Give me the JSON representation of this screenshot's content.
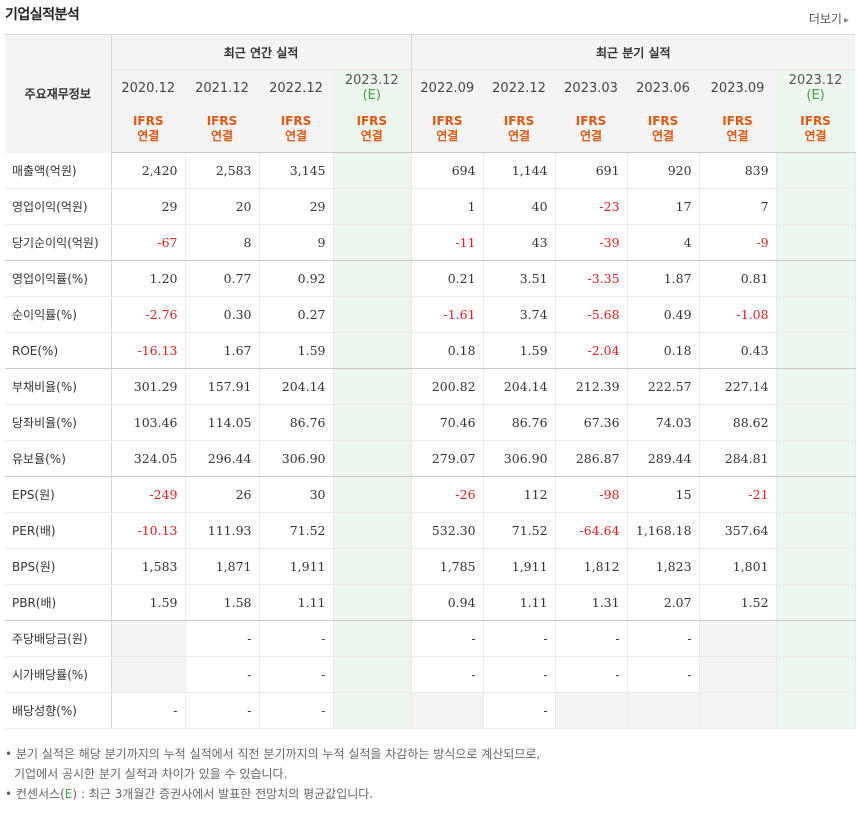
{
  "title": "기업실적분석",
  "more": "더보기",
  "header": {
    "label": "주요재무정보",
    "annual": "최근 연간 실적",
    "quarterly": "최근 분기 실적",
    "ifrs": "IFRS",
    "consolidated": "연결",
    "annual_periods": [
      "2020.12",
      "2021.12",
      "2022.12",
      "2023.12"
    ],
    "quarter_periods": [
      "2022.09",
      "2022.12",
      "2023.03",
      "2023.06",
      "2023.09",
      "2023.12"
    ],
    "estimate_mark": "(E)"
  },
  "rows": [
    {
      "label": "매출액(억원)",
      "a": [
        "2,420",
        "2,583",
        "3,145",
        ""
      ],
      "q": [
        "694",
        "1,144",
        "691",
        "920",
        "839",
        ""
      ]
    },
    {
      "label": "영업이익(억원)",
      "a": [
        "29",
        "20",
        "29",
        ""
      ],
      "q": [
        "1",
        "40",
        "-23",
        "17",
        "7",
        ""
      ]
    },
    {
      "label": "당기순이익(억원)",
      "a": [
        "-67",
        "8",
        "9",
        ""
      ],
      "q": [
        "-11",
        "43",
        "-39",
        "4",
        "-9",
        ""
      ]
    },
    {
      "label": "영업이익률(%)",
      "a": [
        "1.20",
        "0.77",
        "0.92",
        ""
      ],
      "q": [
        "0.21",
        "3.51",
        "-3.35",
        "1.87",
        "0.81",
        ""
      ]
    },
    {
      "label": "순이익률(%)",
      "a": [
        "-2.76",
        "0.30",
        "0.27",
        ""
      ],
      "q": [
        "-1.61",
        "3.74",
        "-5.68",
        "0.49",
        "-1.08",
        ""
      ]
    },
    {
      "label": "ROE(%)",
      "a": [
        "-16.13",
        "1.67",
        "1.59",
        ""
      ],
      "q": [
        "0.18",
        "1.59",
        "-2.04",
        "0.18",
        "0.43",
        ""
      ]
    },
    {
      "label": "부채비율(%)",
      "a": [
        "301.29",
        "157.91",
        "204.14",
        ""
      ],
      "q": [
        "200.82",
        "204.14",
        "212.39",
        "222.57",
        "227.14",
        ""
      ]
    },
    {
      "label": "당좌비율(%)",
      "a": [
        "103.46",
        "114.05",
        "86.76",
        ""
      ],
      "q": [
        "70.46",
        "86.76",
        "67.36",
        "74.03",
        "88.62",
        ""
      ]
    },
    {
      "label": "유보율(%)",
      "a": [
        "324.05",
        "296.44",
        "306.90",
        ""
      ],
      "q": [
        "279.07",
        "306.90",
        "286.87",
        "289.44",
        "284.81",
        ""
      ]
    },
    {
      "label": "EPS(원)",
      "a": [
        "-249",
        "26",
        "30",
        ""
      ],
      "q": [
        "-26",
        "112",
        "-98",
        "15",
        "-21",
        ""
      ]
    },
    {
      "label": "PER(배)",
      "a": [
        "-10.13",
        "111.93",
        "71.52",
        ""
      ],
      "q": [
        "532.30",
        "71.52",
        "-64.64",
        "1,168.18",
        "357.64",
        ""
      ]
    },
    {
      "label": "BPS(원)",
      "a": [
        "1,583",
        "1,871",
        "1,911",
        ""
      ],
      "q": [
        "1,785",
        "1,911",
        "1,812",
        "1,823",
        "1,801",
        ""
      ]
    },
    {
      "label": "PBR(배)",
      "a": [
        "1.59",
        "1.58",
        "1.11",
        ""
      ],
      "q": [
        "0.94",
        "1.11",
        "1.31",
        "2.07",
        "1.52",
        ""
      ]
    },
    {
      "label": "주당배당금(원)",
      "a": [
        "",
        "-",
        "-",
        ""
      ],
      "q": [
        "-",
        "-",
        "-",
        "-",
        "",
        ""
      ]
    },
    {
      "label": "시가배당률(%)",
      "a": [
        "",
        "-",
        "-",
        ""
      ],
      "q": [
        "-",
        "-",
        "-",
        "-",
        "",
        ""
      ]
    },
    {
      "label": "배당성향(%)",
      "a": [
        "-",
        "-",
        "-",
        ""
      ],
      "q": [
        "",
        "-",
        "",
        "",
        "",
        ""
      ]
    }
  ],
  "notes": {
    "line1": "분기 실적은 해당 분기까지의 누적 실적에서 직전 분기까지의 누적 실적을 차감하는 방식으로 계산되므로,",
    "line2": "기업에서 공시한 분기 실적과 차이가 있을 수 있습니다.",
    "line3_prefix": "컨센서스(",
    "line3_e": "E",
    "line3_suffix": ") : 최근 3개월간 증권사에서 발표한 전망치의 평균값입니다."
  }
}
